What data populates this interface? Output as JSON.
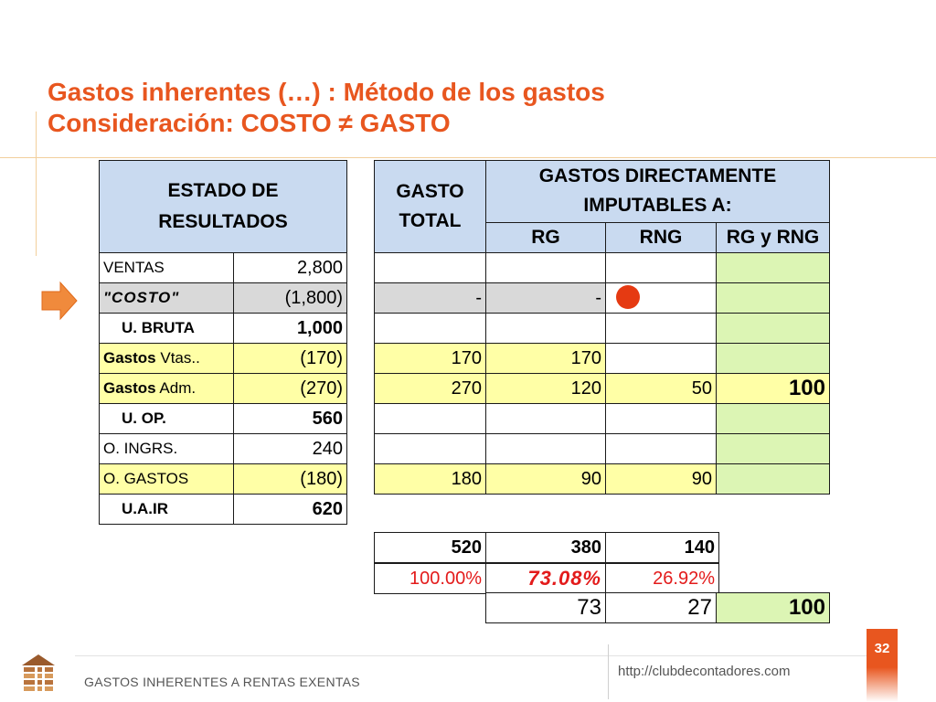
{
  "slide": {
    "title_line1": "Gastos inherentes (…) : Método de los gastos",
    "title_line2": "Consideración: COSTO ≠ GASTO",
    "footer_text": "GASTOS INHERENTES A RENTAS EXENTAS",
    "footer_url": "http://clubdecontadores.com",
    "page_number": "32"
  },
  "left_table": {
    "header": "ESTADO DE RESULTADOS",
    "rows": [
      {
        "label": "VENTAS",
        "value": "2,800"
      },
      {
        "label": "\"COSTO\"",
        "value": "(1,800)"
      },
      {
        "label": "U. BRUTA",
        "value": "1,000"
      },
      {
        "label_bold": "Gastos",
        "label_rest": " Vtas..",
        "value": "(170)"
      },
      {
        "label_bold": "Gastos",
        "label_rest": " Adm.",
        "value": "(270)"
      },
      {
        "label": "U. OP.",
        "value": "560"
      },
      {
        "label": "O. INGRS.",
        "value": "240"
      },
      {
        "label": "O. GASTOS",
        "value": "(180)"
      },
      {
        "label": "U.A.IR",
        "value": "620"
      }
    ]
  },
  "right_table": {
    "header_total": "GASTO TOTAL",
    "header_group": "GASTOS DIRECTAMENTE IMPUTABLES A:",
    "col_rg": "RG",
    "col_rng": "RNG",
    "col_both": "RG y RNG",
    "rows": [
      {
        "total": "",
        "rg": "",
        "rng": "",
        "both": ""
      },
      {
        "total": "-",
        "rg": "-",
        "rng": "",
        "both": ""
      },
      {
        "total": "",
        "rg": "",
        "rng": "",
        "both": ""
      },
      {
        "total": "170",
        "rg": "170",
        "rng": "",
        "both": ""
      },
      {
        "total": "270",
        "rg": "120",
        "rng": "50",
        "both": "100"
      },
      {
        "total": "",
        "rg": "",
        "rng": "",
        "both": ""
      },
      {
        "total": "",
        "rg": "",
        "rng": "",
        "both": ""
      },
      {
        "total": "180",
        "rg": "90",
        "rng": "90",
        "both": ""
      }
    ]
  },
  "summary": {
    "totals": {
      "total": "520",
      "rg": "380",
      "rng": "140"
    },
    "percents": {
      "total": "100.00%",
      "rg": "73.08%",
      "rng": "26.92%"
    },
    "prorata": {
      "rg": "73",
      "rng": "27",
      "both": "100"
    }
  },
  "colors": {
    "accent": "#e8561f",
    "header_blue": "#c9daf0",
    "yellow": "#ffffa6",
    "green": "#dcf5b4",
    "red_text": "#e31b1b"
  },
  "icons": [
    "orange-arrow-icon",
    "red-dot-icon",
    "building-logo-icon"
  ]
}
